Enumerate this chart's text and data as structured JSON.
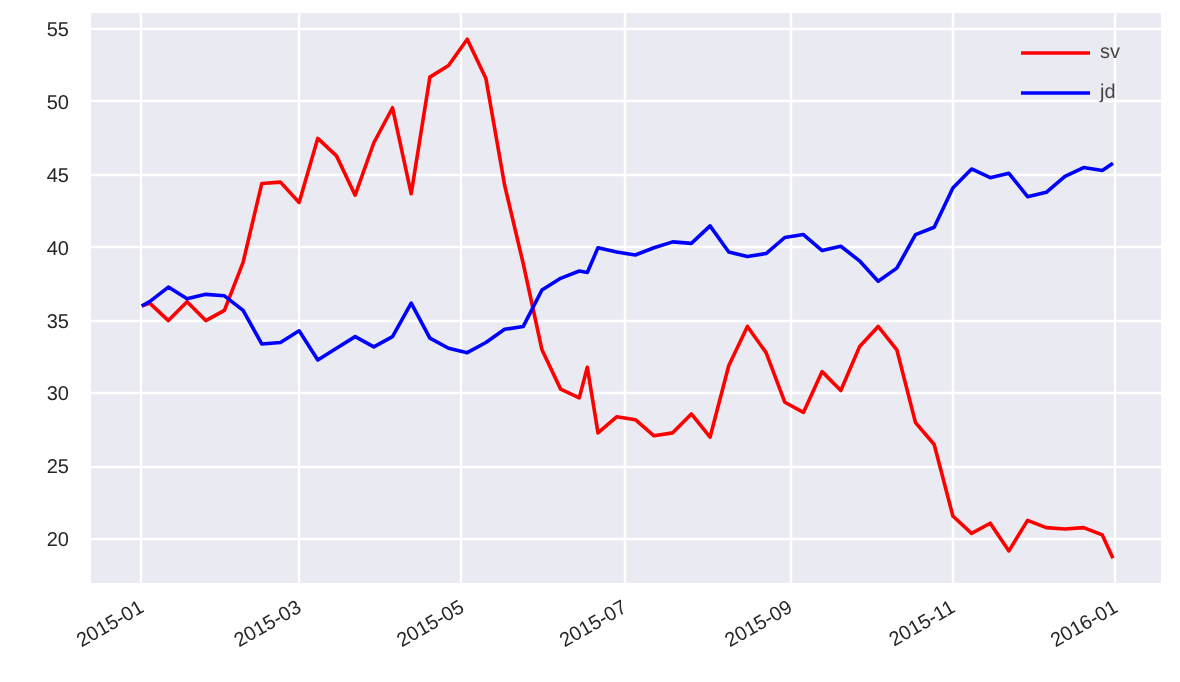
{
  "chart_data": {
    "type": "line",
    "x": [
      "2015-01-01",
      "2015-01-04",
      "2015-01-11",
      "2015-01-18",
      "2015-01-25",
      "2015-02-01",
      "2015-02-08",
      "2015-02-15",
      "2015-02-22",
      "2015-03-01",
      "2015-03-08",
      "2015-03-15",
      "2015-03-22",
      "2015-03-29",
      "2015-04-05",
      "2015-04-12",
      "2015-04-19",
      "2015-04-26",
      "2015-05-03",
      "2015-05-10",
      "2015-05-17",
      "2015-05-24",
      "2015-05-31",
      "2015-06-07",
      "2015-06-14",
      "2015-06-17",
      "2015-06-21",
      "2015-06-28",
      "2015-07-05",
      "2015-07-12",
      "2015-07-19",
      "2015-07-26",
      "2015-08-02",
      "2015-08-09",
      "2015-08-16",
      "2015-08-23",
      "2015-08-30",
      "2015-09-06",
      "2015-09-13",
      "2015-09-20",
      "2015-09-27",
      "2015-10-04",
      "2015-10-11",
      "2015-10-18",
      "2015-10-25",
      "2015-11-01",
      "2015-11-08",
      "2015-11-15",
      "2015-11-22",
      "2015-11-29",
      "2015-12-06",
      "2015-12-13",
      "2015-12-20",
      "2015-12-27",
      "2015-12-31"
    ],
    "series": [
      {
        "name": "sv",
        "color": "#ff0000",
        "values": [
          36.0,
          36.2,
          35.0,
          36.3,
          35.0,
          35.7,
          39.0,
          44.4,
          44.5,
          43.1,
          47.5,
          46.3,
          43.6,
          47.2,
          49.6,
          43.7,
          51.7,
          52.5,
          54.3,
          51.6,
          44.3,
          38.9,
          33.0,
          30.3,
          29.7,
          31.8,
          27.3,
          28.4,
          28.2,
          27.1,
          27.3,
          28.6,
          27.0,
          31.9,
          34.6,
          32.8,
          29.4,
          28.7,
          31.5,
          30.2,
          33.2,
          34.6,
          33.0,
          28.0,
          26.5,
          21.6,
          20.4,
          21.1,
          19.2,
          21.3,
          20.8,
          20.7,
          20.8,
          20.3,
          18.7
        ]
      },
      {
        "name": "jd",
        "color": "#0000ff",
        "values": [
          36.0,
          36.3,
          37.3,
          36.5,
          36.8,
          36.7,
          35.7,
          33.4,
          33.5,
          34.3,
          32.3,
          33.1,
          33.9,
          33.2,
          33.9,
          36.2,
          33.8,
          33.1,
          32.8,
          33.5,
          34.4,
          34.6,
          37.1,
          37.9,
          38.4,
          38.3,
          40.0,
          39.7,
          39.5,
          40.0,
          40.4,
          40.3,
          41.5,
          39.7,
          39.4,
          39.6,
          40.7,
          40.9,
          39.8,
          40.1,
          39.1,
          37.7,
          38.6,
          40.9,
          41.4,
          44.1,
          45.4,
          44.8,
          45.1,
          43.5,
          43.8,
          44.9,
          45.5,
          45.3,
          45.8
        ]
      }
    ],
    "xlim": [
      "2014-12-13",
      "2016-01-18"
    ],
    "xticks": [
      {
        "value": "2015-01-01",
        "label": "2015-01"
      },
      {
        "value": "2015-03-01",
        "label": "2015-03"
      },
      {
        "value": "2015-05-01",
        "label": "2015-05"
      },
      {
        "value": "2015-07-01",
        "label": "2015-07"
      },
      {
        "value": "2015-09-01",
        "label": "2015-09"
      },
      {
        "value": "2015-11-01",
        "label": "2015-11"
      },
      {
        "value": "2016-01-01",
        "label": "2016-01"
      }
    ],
    "ylim": [
      17.0,
      56.1
    ],
    "yticks": [
      20,
      25,
      30,
      35,
      40,
      45,
      50,
      55
    ],
    "grid": true,
    "legend": "top right",
    "line_style": "solid"
  }
}
